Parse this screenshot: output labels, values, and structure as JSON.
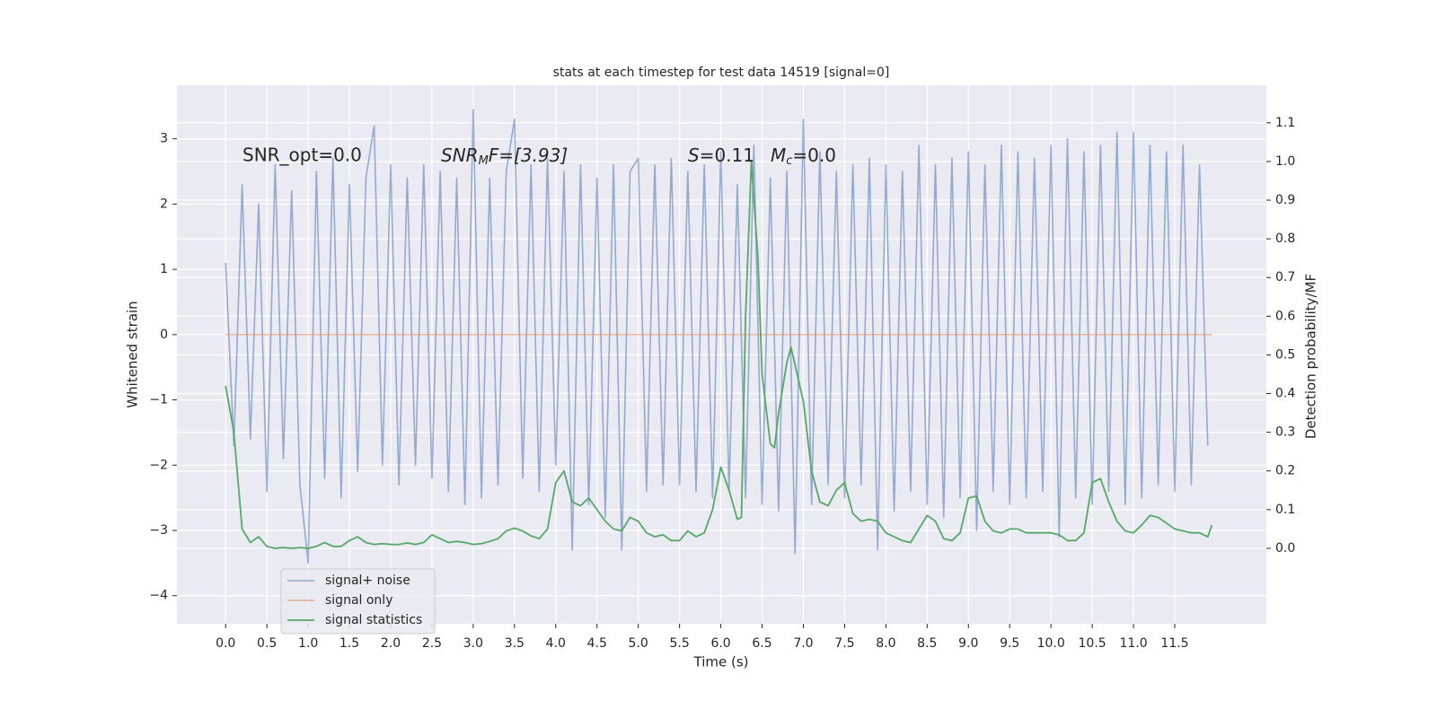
{
  "chart_data": {
    "type": "line",
    "title": "stats at each timestep for test data 14519 [signal=0]",
    "xlabel": "Time (s)",
    "ylabel": "Whitened strain",
    "y2label": "Detection probability/MF",
    "annotations": {
      "snr_opt": "SNR_opt=0.0",
      "snr_mf": [
        "SNR",
        "M",
        "F=[3.93]"
      ],
      "s": [
        "S",
        "=0.11"
      ],
      "mc": [
        "M",
        "c",
        "=0.0"
      ]
    },
    "grid": true,
    "xlim": [
      -0.59,
      12.61
    ],
    "ylim": [
      -4.43,
      3.82
    ],
    "y2lim": [
      -0.195,
      1.197
    ],
    "xticks": [
      {
        "value": 0,
        "label": "0.0"
      },
      {
        "value": 0.5,
        "label": "0.5"
      },
      {
        "value": 1,
        "label": "1.0"
      },
      {
        "value": 1.5,
        "label": "1.5"
      },
      {
        "value": 2,
        "label": "2.0"
      },
      {
        "value": 2.5,
        "label": "2.5"
      },
      {
        "value": 3,
        "label": "3.0"
      },
      {
        "value": 3.5,
        "label": "3.5"
      },
      {
        "value": 4,
        "label": "4.0"
      },
      {
        "value": 4.5,
        "label": "4.5"
      },
      {
        "value": 5,
        "label": "5.0"
      },
      {
        "value": 5.5,
        "label": "5.5"
      },
      {
        "value": 6,
        "label": "6.0"
      },
      {
        "value": 6.5,
        "label": "6.5"
      },
      {
        "value": 7,
        "label": "7.0"
      },
      {
        "value": 7.5,
        "label": "7.5"
      },
      {
        "value": 8,
        "label": "8.0"
      },
      {
        "value": 8.5,
        "label": "8.5"
      },
      {
        "value": 9,
        "label": "9.0"
      },
      {
        "value": 9.5,
        "label": "9.5"
      },
      {
        "value": 10,
        "label": "10.0"
      },
      {
        "value": 10.5,
        "label": "10.5"
      },
      {
        "value": 11,
        "label": "11.0"
      },
      {
        "value": 11.5,
        "label": "11.5"
      }
    ],
    "yticks": [
      {
        "value": -4,
        "label": "−4"
      },
      {
        "value": -3,
        "label": "−3"
      },
      {
        "value": -2,
        "label": "−2"
      },
      {
        "value": -1,
        "label": "−1"
      },
      0,
      1,
      2,
      3
    ],
    "y2ticks": [
      {
        "value": 0,
        "label": "0.0"
      },
      {
        "value": 0.1,
        "label": "0.1"
      },
      {
        "value": 0.2,
        "label": "0.2"
      },
      {
        "value": 0.3,
        "label": "0.3"
      },
      {
        "value": 0.4,
        "label": "0.4"
      },
      {
        "value": 0.5,
        "label": "0.5"
      },
      {
        "value": 0.6,
        "label": "0.6"
      },
      {
        "value": 0.7,
        "label": "0.7"
      },
      {
        "value": 0.8,
        "label": "0.8"
      },
      {
        "value": 0.9,
        "label": "0.9"
      },
      {
        "value": 1,
        "label": "1.0"
      },
      {
        "value": 1.1,
        "label": "1.1"
      }
    ],
    "series": [
      {
        "name": "signal+ noise",
        "color": "#4c72b0",
        "x": [
          0,
          0.1,
          0.2,
          0.3,
          0.4,
          0.5,
          0.6,
          0.7,
          0.8,
          0.9,
          1,
          1.1,
          1.2,
          1.3,
          1.4,
          1.5,
          1.6,
          1.7,
          1.8,
          1.9,
          2,
          2.1,
          2.2,
          2.3,
          2.4,
          2.5,
          2.6,
          2.7,
          2.8,
          2.9,
          3,
          3.1,
          3.2,
          3.3,
          3.4,
          3.5,
          3.6,
          3.7,
          3.8,
          3.9,
          4,
          4.1,
          4.2,
          4.3,
          4.4,
          4.5,
          4.6,
          4.7,
          4.8,
          4.9,
          5,
          5.1,
          5.2,
          5.3,
          5.4,
          5.5,
          5.6,
          5.7,
          5.8,
          5.9,
          6,
          6.1,
          6.2,
          6.3,
          6.4,
          6.5,
          6.6,
          6.7,
          6.8,
          6.9,
          7,
          7.1,
          7.2,
          7.3,
          7.4,
          7.5,
          7.6,
          7.7,
          7.8,
          7.9,
          8,
          8.1,
          8.2,
          8.3,
          8.4,
          8.5,
          8.6,
          8.7,
          8.8,
          8.9,
          9,
          9.1,
          9.2,
          9.3,
          9.4,
          9.5,
          9.6,
          9.7,
          9.8,
          9.9,
          10,
          10.1,
          10.2,
          10.3,
          10.4,
          10.5,
          10.6,
          10.7,
          10.8,
          10.9,
          11,
          11.1,
          11.2,
          11.3,
          11.4,
          11.5,
          11.6,
          11.7,
          11.8,
          11.9
        ],
        "values": [
          1.1,
          -1.7,
          2.3,
          -1.6,
          2.0,
          -2.4,
          2.6,
          -1.9,
          2.2,
          -2.3,
          -3.5,
          2.5,
          -2.2,
          2.7,
          -2.5,
          2.3,
          -2.1,
          2.4,
          3.2,
          -2.0,
          2.6,
          -2.3,
          2.4,
          -2.0,
          2.6,
          -2.2,
          2.5,
          -2.4,
          2.4,
          -2.6,
          3.45,
          -2.5,
          2.4,
          -2.3,
          2.5,
          3.3,
          -2.2,
          2.6,
          -2.4,
          2.7,
          -2.0,
          2.5,
          -3.3,
          2.6,
          -2.6,
          2.4,
          -2.8,
          2.6,
          -3.3,
          2.5,
          2.7,
          -2.4,
          2.6,
          -2.3,
          2.7,
          -2.3,
          2.5,
          -2.4,
          2.6,
          -2.5,
          2.8,
          -2.4,
          2.3,
          -2.5,
          2.9,
          -2.6,
          2.4,
          -2.7,
          2.5,
          -3.35,
          3.3,
          -2.6,
          2.8,
          -2.3,
          2.5,
          -2.5,
          2.6,
          -2.3,
          2.7,
          -3.3,
          2.6,
          -2.7,
          2.5,
          -2.4,
          2.9,
          -2.6,
          2.6,
          -2.8,
          2.7,
          -2.5,
          2.8,
          -3.0,
          2.6,
          -2.4,
          2.9,
          -2.6,
          2.8,
          -2.5,
          2.7,
          -2.4,
          2.9,
          -3.1,
          3.0,
          -2.5,
          2.8,
          -2.6,
          2.9,
          -2.4,
          3.1,
          -2.6,
          3.1,
          -2.5,
          2.9,
          -2.3,
          2.8,
          -2.4,
          2.9,
          -2.3,
          2.6,
          -1.7
        ]
      },
      {
        "name": "signal only",
        "color": "#dd8452",
        "x": [
          0,
          11.95
        ],
        "values": [
          0,
          0
        ]
      },
      {
        "name": "signal statistics",
        "color": "#55a868",
        "axis": "y2",
        "x": [
          0,
          0.1,
          0.2,
          0.3,
          0.4,
          0.5,
          0.6,
          0.7,
          0.8,
          0.9,
          1,
          1.1,
          1.2,
          1.3,
          1.4,
          1.5,
          1.6,
          1.7,
          1.8,
          1.9,
          2,
          2.1,
          2.2,
          2.3,
          2.4,
          2.5,
          2.6,
          2.7,
          2.8,
          2.9,
          3,
          3.1,
          3.2,
          3.3,
          3.4,
          3.5,
          3.6,
          3.7,
          3.8,
          3.9,
          4,
          4.1,
          4.2,
          4.3,
          4.4,
          4.5,
          4.6,
          4.7,
          4.8,
          4.9,
          5,
          5.1,
          5.2,
          5.3,
          5.4,
          5.5,
          5.6,
          5.7,
          5.8,
          5.9,
          6,
          6.1,
          6.2,
          6.25,
          6.3,
          6.37,
          6.45,
          6.5,
          6.6,
          6.65,
          6.7,
          6.8,
          6.85,
          7,
          7.1,
          7.2,
          7.3,
          7.4,
          7.5,
          7.6,
          7.7,
          7.8,
          7.9,
          8,
          8.1,
          8.2,
          8.3,
          8.4,
          8.5,
          8.6,
          8.7,
          8.8,
          8.9,
          9,
          9.1,
          9.2,
          9.3,
          9.4,
          9.5,
          9.6,
          9.7,
          9.8,
          9.9,
          10,
          10.1,
          10.2,
          10.3,
          10.4,
          10.5,
          10.6,
          10.7,
          10.8,
          10.9,
          11,
          11.1,
          11.2,
          11.3,
          11.4,
          11.5,
          11.6,
          11.7,
          11.8,
          11.9,
          11.95
        ],
        "values": [
          0.42,
          0.3,
          0.05,
          0.015,
          0.03,
          0.005,
          0,
          0.002,
          0,
          0.002,
          0,
          0.005,
          0.015,
          0.005,
          0.005,
          0.02,
          0.03,
          0.015,
          0.01,
          0.012,
          0.01,
          0.01,
          0.014,
          0.01,
          0.015,
          0.035,
          0.025,
          0.015,
          0.018,
          0.015,
          0.01,
          0.012,
          0.018,
          0.025,
          0.045,
          0.052,
          0.045,
          0.032,
          0.025,
          0.05,
          0.17,
          0.2,
          0.12,
          0.11,
          0.13,
          0.1,
          0.07,
          0.05,
          0.045,
          0.08,
          0.07,
          0.04,
          0.03,
          0.035,
          0.02,
          0.02,
          0.045,
          0.03,
          0.04,
          0.1,
          0.21,
          0.15,
          0.075,
          0.08,
          0.6,
          1.0,
          0.75,
          0.45,
          0.27,
          0.26,
          0.35,
          0.48,
          0.52,
          0.38,
          0.2,
          0.12,
          0.11,
          0.15,
          0.17,
          0.09,
          0.07,
          0.075,
          0.07,
          0.04,
          0.03,
          0.02,
          0.015,
          0.05,
          0.085,
          0.07,
          0.025,
          0.02,
          0.04,
          0.13,
          0.135,
          0.07,
          0.045,
          0.04,
          0.05,
          0.05,
          0.04,
          0.04,
          0.04,
          0.04,
          0.035,
          0.02,
          0.02,
          0.04,
          0.17,
          0.18,
          0.12,
          0.07,
          0.045,
          0.04,
          0.06,
          0.085,
          0.08,
          0.065,
          0.05,
          0.045,
          0.04,
          0.04,
          0.03,
          0.06
        ]
      }
    ]
  }
}
